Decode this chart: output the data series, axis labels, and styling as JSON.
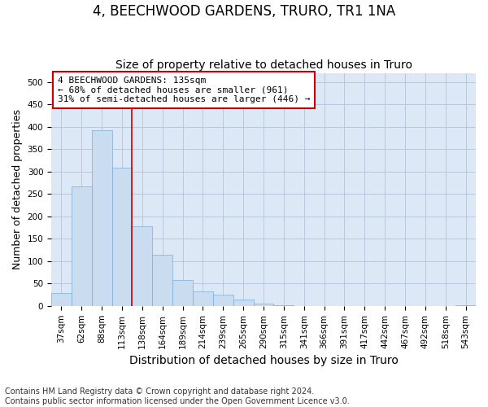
{
  "title": "4, BEECHWOOD GARDENS, TRURO, TR1 1NA",
  "subtitle": "Size of property relative to detached houses in Truro",
  "xlabel": "Distribution of detached houses by size in Truro",
  "ylabel": "Number of detached properties",
  "footer_line1": "Contains HM Land Registry data © Crown copyright and database right 2024.",
  "footer_line2": "Contains public sector information licensed under the Open Government Licence v3.0.",
  "categories": [
    "37sqm",
    "62sqm",
    "88sqm",
    "113sqm",
    "138sqm",
    "164sqm",
    "189sqm",
    "214sqm",
    "239sqm",
    "265sqm",
    "290sqm",
    "315sqm",
    "341sqm",
    "366sqm",
    "391sqm",
    "417sqm",
    "442sqm",
    "467sqm",
    "492sqm",
    "518sqm",
    "543sqm"
  ],
  "values": [
    28,
    267,
    392,
    308,
    178,
    115,
    58,
    32,
    25,
    14,
    6,
    1,
    0,
    0,
    0,
    0,
    0,
    0,
    0,
    0,
    2
  ],
  "bar_color": "#c9dcf0",
  "bar_edge_color": "#7aaed6",
  "bar_edge_width": 0.5,
  "property_line_x": 3.5,
  "annotation_text_line1": "4 BEECHWOOD GARDENS: 135sqm",
  "annotation_text_line2": "← 68% of detached houses are smaller (961)",
  "annotation_text_line3": "31% of semi-detached houses are larger (446) →",
  "annotation_box_facecolor": "#ffffff",
  "annotation_box_edgecolor": "#cc0000",
  "vline_color": "#cc0000",
  "ylim": [
    0,
    520
  ],
  "yticks": [
    0,
    50,
    100,
    150,
    200,
    250,
    300,
    350,
    400,
    450,
    500
  ],
  "grid_color": "#b8c8dc",
  "fig_bg_color": "#ffffff",
  "plot_bg_color": "#dce8f5",
  "title_fontsize": 12,
  "subtitle_fontsize": 10,
  "tick_fontsize": 7.5,
  "ylabel_fontsize": 9,
  "xlabel_fontsize": 10,
  "annotation_fontsize": 8,
  "footer_fontsize": 7
}
